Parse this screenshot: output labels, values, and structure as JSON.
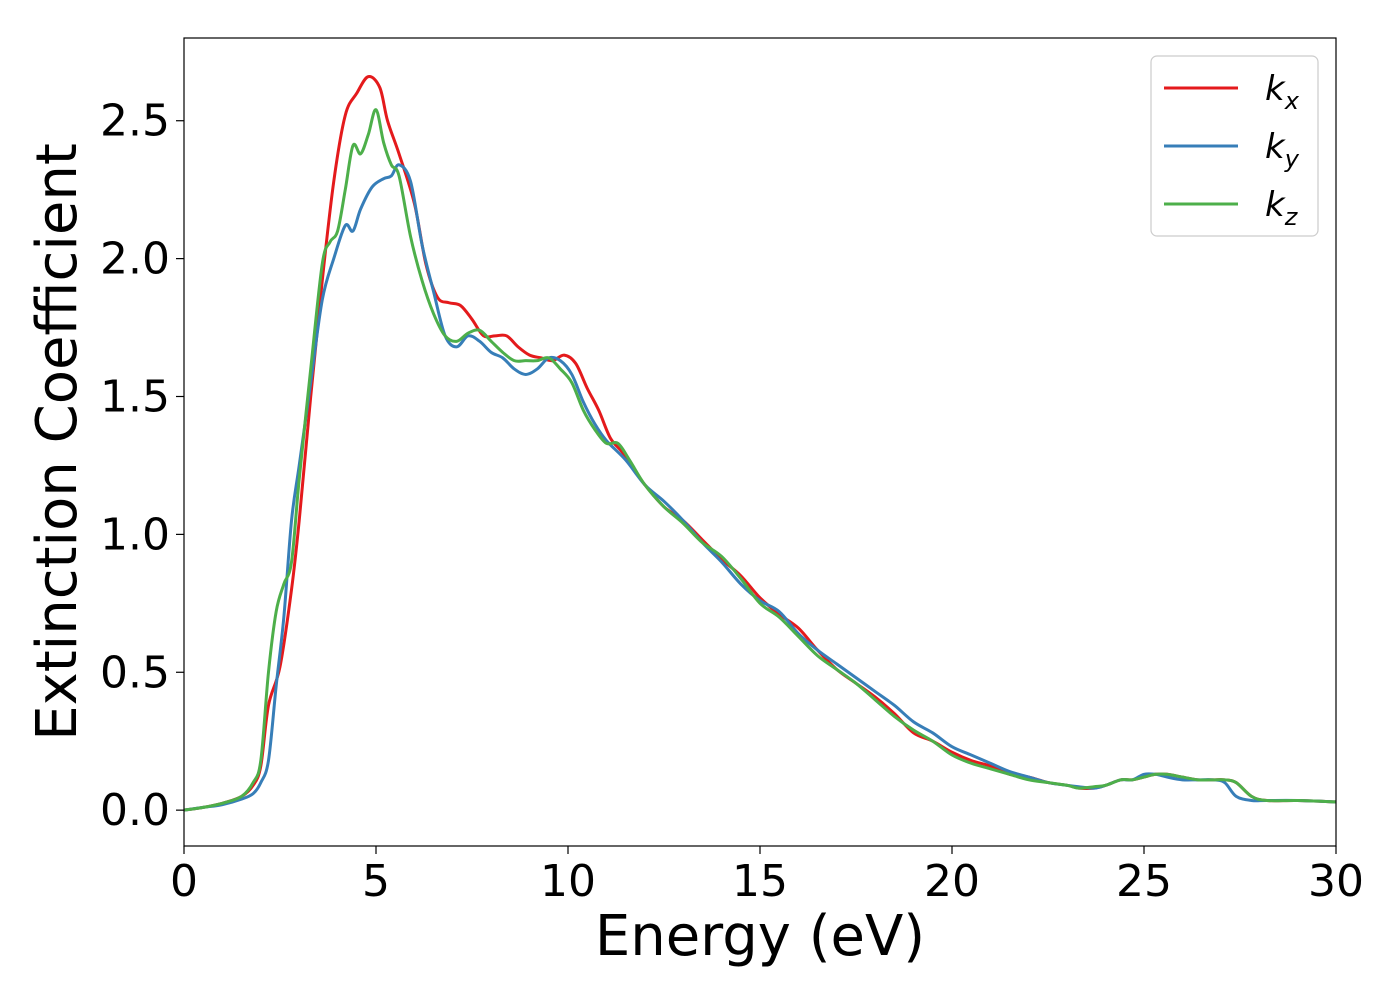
{
  "chart_data": {
    "type": "line",
    "title": "",
    "xlabel": "Energy (eV)",
    "ylabel": "Extinction Coefficient",
    "xlim": [
      0,
      30
    ],
    "ylim": [
      -0.13,
      2.8
    ],
    "xticks": [
      0,
      5,
      10,
      15,
      20,
      25,
      30
    ],
    "xtick_labels": [
      "0",
      "5",
      "10",
      "15",
      "20",
      "25",
      "30"
    ],
    "yticks": [
      0.0,
      0.5,
      1.0,
      1.5,
      2.0,
      2.5
    ],
    "ytick_labels": [
      "0.0",
      "0.5",
      "1.0",
      "1.5",
      "2.0",
      "2.5"
    ],
    "grid": false,
    "legend_position": "top-right",
    "series": [
      {
        "name": "k",
        "subscript": "x",
        "color": "#e41a1c",
        "x": [
          0,
          0.5,
          1.0,
          1.5,
          1.8,
          2.0,
          2.2,
          2.5,
          2.8,
          3.0,
          3.3,
          3.6,
          3.9,
          4.2,
          4.5,
          4.8,
          5.1,
          5.3,
          5.6,
          6.0,
          6.3,
          6.6,
          6.9,
          7.2,
          7.5,
          7.8,
          8.1,
          8.4,
          8.7,
          9.0,
          9.3,
          9.6,
          9.9,
          10.2,
          10.5,
          10.8,
          11.1,
          11.4,
          11.7,
          12.0,
          12.5,
          13.0,
          13.5,
          14.0,
          14.5,
          15.0,
          15.5,
          16.0,
          16.5,
          17.0,
          17.5,
          18.0,
          18.5,
          19.0,
          19.5,
          20.0,
          20.5,
          21.0,
          21.5,
          22.0,
          22.5,
          23.0,
          23.3,
          23.7,
          24.0,
          24.4,
          24.7,
          25.0,
          25.3,
          25.6,
          26.0,
          26.4,
          26.8,
          27.1,
          27.4,
          27.8,
          28.2,
          29.0,
          30.0
        ],
        "y": [
          0.0,
          0.01,
          0.025,
          0.05,
          0.09,
          0.16,
          0.38,
          0.52,
          0.8,
          1.05,
          1.5,
          1.92,
          2.28,
          2.52,
          2.6,
          2.66,
          2.62,
          2.5,
          2.38,
          2.2,
          1.98,
          1.86,
          1.84,
          1.83,
          1.78,
          1.72,
          1.72,
          1.72,
          1.68,
          1.65,
          1.64,
          1.63,
          1.65,
          1.62,
          1.53,
          1.45,
          1.35,
          1.3,
          1.24,
          1.18,
          1.1,
          1.05,
          0.98,
          0.91,
          0.85,
          0.77,
          0.71,
          0.66,
          0.58,
          0.51,
          0.46,
          0.41,
          0.35,
          0.28,
          0.25,
          0.21,
          0.18,
          0.16,
          0.13,
          0.12,
          0.1,
          0.09,
          0.08,
          0.08,
          0.09,
          0.11,
          0.11,
          0.12,
          0.13,
          0.13,
          0.12,
          0.11,
          0.11,
          0.11,
          0.1,
          0.05,
          0.035,
          0.035,
          0.03
        ]
      },
      {
        "name": "k",
        "subscript": "y",
        "color": "#377eb8",
        "x": [
          0,
          0.5,
          1.0,
          1.5,
          1.8,
          2.0,
          2.2,
          2.4,
          2.6,
          2.8,
          3.0,
          3.3,
          3.6,
          3.9,
          4.2,
          4.4,
          4.6,
          4.9,
          5.2,
          5.4,
          5.6,
          5.9,
          6.2,
          6.5,
          6.8,
          7.1,
          7.4,
          7.7,
          8.0,
          8.3,
          8.6,
          8.9,
          9.2,
          9.5,
          9.8,
          10.1,
          10.4,
          10.7,
          11.0,
          11.5,
          12.0,
          12.5,
          13.0,
          13.5,
          14.0,
          14.5,
          15.0,
          15.5,
          16.0,
          16.5,
          17.0,
          17.5,
          18.0,
          18.5,
          19.0,
          19.5,
          20.0,
          20.5,
          21.0,
          21.5,
          22.0,
          22.5,
          23.0,
          23.3,
          23.7,
          24.0,
          24.4,
          24.7,
          25.0,
          25.3,
          25.6,
          26.0,
          26.4,
          26.8,
          27.1,
          27.4,
          27.8,
          28.2,
          29.0,
          30.0
        ],
        "y": [
          0.0,
          0.01,
          0.02,
          0.04,
          0.06,
          0.1,
          0.18,
          0.45,
          0.7,
          1.05,
          1.25,
          1.55,
          1.85,
          2.0,
          2.12,
          2.1,
          2.18,
          2.26,
          2.29,
          2.3,
          2.34,
          2.28,
          2.05,
          1.88,
          1.72,
          1.68,
          1.72,
          1.7,
          1.66,
          1.64,
          1.6,
          1.58,
          1.6,
          1.64,
          1.63,
          1.58,
          1.48,
          1.4,
          1.34,
          1.27,
          1.18,
          1.12,
          1.05,
          0.97,
          0.9,
          0.82,
          0.76,
          0.72,
          0.64,
          0.58,
          0.53,
          0.48,
          0.43,
          0.38,
          0.32,
          0.28,
          0.23,
          0.2,
          0.17,
          0.14,
          0.12,
          0.1,
          0.09,
          0.085,
          0.08,
          0.09,
          0.11,
          0.11,
          0.13,
          0.13,
          0.12,
          0.11,
          0.11,
          0.11,
          0.1,
          0.05,
          0.035,
          0.035,
          0.035,
          0.03
        ]
      },
      {
        "name": "k",
        "subscript": "z",
        "color": "#4daf4a",
        "x": [
          0,
          0.5,
          1.0,
          1.5,
          1.8,
          2.0,
          2.2,
          2.4,
          2.6,
          2.8,
          3.0,
          3.3,
          3.6,
          3.8,
          4.0,
          4.2,
          4.4,
          4.6,
          4.8,
          5.0,
          5.2,
          5.4,
          5.6,
          5.9,
          6.2,
          6.5,
          6.8,
          7.1,
          7.4,
          7.7,
          8.0,
          8.3,
          8.6,
          8.9,
          9.2,
          9.5,
          9.8,
          10.1,
          10.4,
          10.7,
          11.0,
          11.3,
          11.6,
          12.0,
          12.5,
          13.0,
          13.5,
          14.0,
          14.5,
          15.0,
          15.5,
          16.0,
          16.5,
          17.0,
          17.5,
          18.0,
          18.5,
          19.0,
          19.5,
          20.0,
          20.5,
          21.0,
          21.5,
          22.0,
          22.5,
          23.0,
          23.3,
          23.7,
          24.0,
          24.4,
          24.7,
          25.0,
          25.3,
          25.6,
          26.0,
          26.4,
          26.8,
          27.1,
          27.4,
          27.8,
          28.2,
          29.0,
          30.0
        ],
        "y": [
          0.0,
          0.01,
          0.025,
          0.05,
          0.1,
          0.18,
          0.5,
          0.72,
          0.82,
          0.9,
          1.2,
          1.6,
          1.98,
          2.06,
          2.1,
          2.25,
          2.41,
          2.38,
          2.45,
          2.54,
          2.42,
          2.34,
          2.3,
          2.08,
          1.92,
          1.8,
          1.72,
          1.7,
          1.73,
          1.74,
          1.7,
          1.66,
          1.63,
          1.63,
          1.63,
          1.64,
          1.6,
          1.55,
          1.45,
          1.38,
          1.33,
          1.33,
          1.27,
          1.18,
          1.1,
          1.04,
          0.97,
          0.92,
          0.84,
          0.75,
          0.7,
          0.63,
          0.56,
          0.51,
          0.46,
          0.4,
          0.34,
          0.29,
          0.25,
          0.2,
          0.17,
          0.15,
          0.13,
          0.11,
          0.1,
          0.09,
          0.08,
          0.085,
          0.09,
          0.11,
          0.11,
          0.12,
          0.13,
          0.13,
          0.12,
          0.11,
          0.11,
          0.11,
          0.1,
          0.05,
          0.035,
          0.035,
          0.03
        ]
      }
    ]
  }
}
